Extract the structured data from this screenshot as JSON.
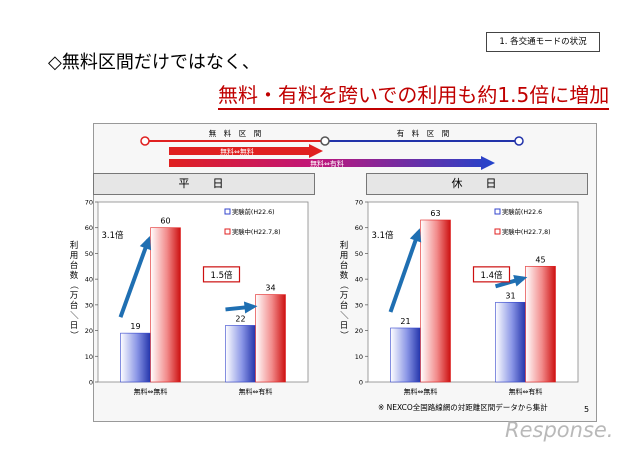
{
  "header": {
    "section_tag": "1. 各交通モードの状況",
    "headline": "◇無料区間だけではなく、",
    "subheadline": "無料・有料を跨いでの利用も約1.5倍に増加"
  },
  "route_diagram": {
    "free_section_label": "無　料　区　間",
    "toll_section_label": "有　料　区　間",
    "arrow_free_label": "無料⇔無料",
    "arrow_mixed_label": "無料⇔有料",
    "colors": {
      "free": "#e02020",
      "toll": "#2233aa",
      "gradient_end": "#2244cc"
    }
  },
  "chart_data": [
    {
      "type": "bar",
      "title": "平　日",
      "ylabel": "利用台数（万台／日）",
      "ylim": [
        0,
        70
      ],
      "yticks": [
        0,
        10,
        20,
        30,
        40,
        50,
        60,
        70
      ],
      "categories": [
        "無料⇔無料",
        "無料⇔有料"
      ],
      "series": [
        {
          "name": "実験前(H22.6)",
          "values": [
            19,
            22
          ],
          "color": "#3344cc"
        },
        {
          "name": "実験中(H22.7,8)",
          "values": [
            60,
            34
          ],
          "color": "#e02020"
        }
      ],
      "annotations": [
        {
          "text": "3.1倍",
          "category": "無料⇔無料",
          "boxed": false
        },
        {
          "text": "1.5倍",
          "category": "無料⇔有料",
          "boxed": true
        }
      ]
    },
    {
      "type": "bar",
      "title": "休　日",
      "ylabel": "利用台数（万台／日）",
      "ylim": [
        0,
        70
      ],
      "yticks": [
        0,
        10,
        20,
        30,
        40,
        50,
        60,
        70
      ],
      "categories": [
        "無料⇔無料",
        "無料⇔有料"
      ],
      "series": [
        {
          "name": "実験前(H22.6",
          "values": [
            21,
            31
          ],
          "color": "#3344cc"
        },
        {
          "name": "実験中(H22.7,8)",
          "values": [
            63,
            45
          ],
          "color": "#e02020"
        }
      ],
      "annotations": [
        {
          "text": "3.1倍",
          "category": "無料⇔無料",
          "boxed": false
        },
        {
          "text": "1.4倍",
          "category": "無料⇔有料",
          "boxed": true
        }
      ]
    }
  ],
  "footnote": "※ NEXCO全国路線網の対距離区間データから集計",
  "page_number": "5",
  "watermark": "Response."
}
